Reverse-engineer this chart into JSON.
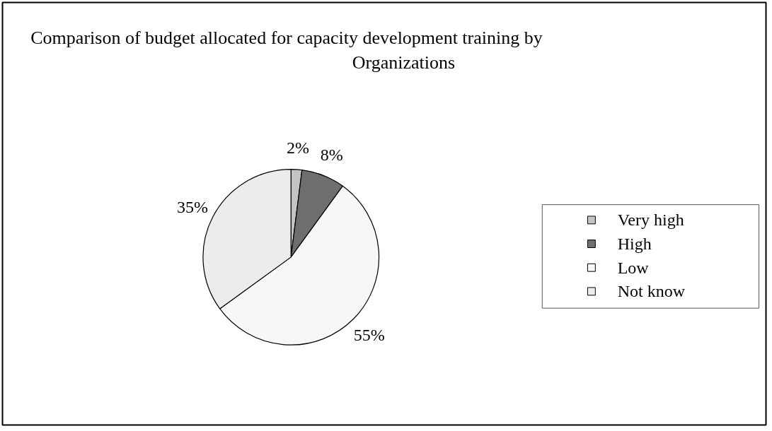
{
  "chart_data": {
    "type": "pie",
    "title": "Comparison of budget allocated for capacity development training by Organizations",
    "categories": [
      "Very high",
      "High",
      "Low",
      "Not know"
    ],
    "values": [
      2,
      8,
      55,
      35
    ],
    "colors": [
      "#c4c4c4",
      "#6e6e6e",
      "#f7f7f7",
      "#ececec"
    ],
    "value_labels": [
      "2%",
      "8%",
      "55%",
      "35%"
    ],
    "legend": "right"
  }
}
